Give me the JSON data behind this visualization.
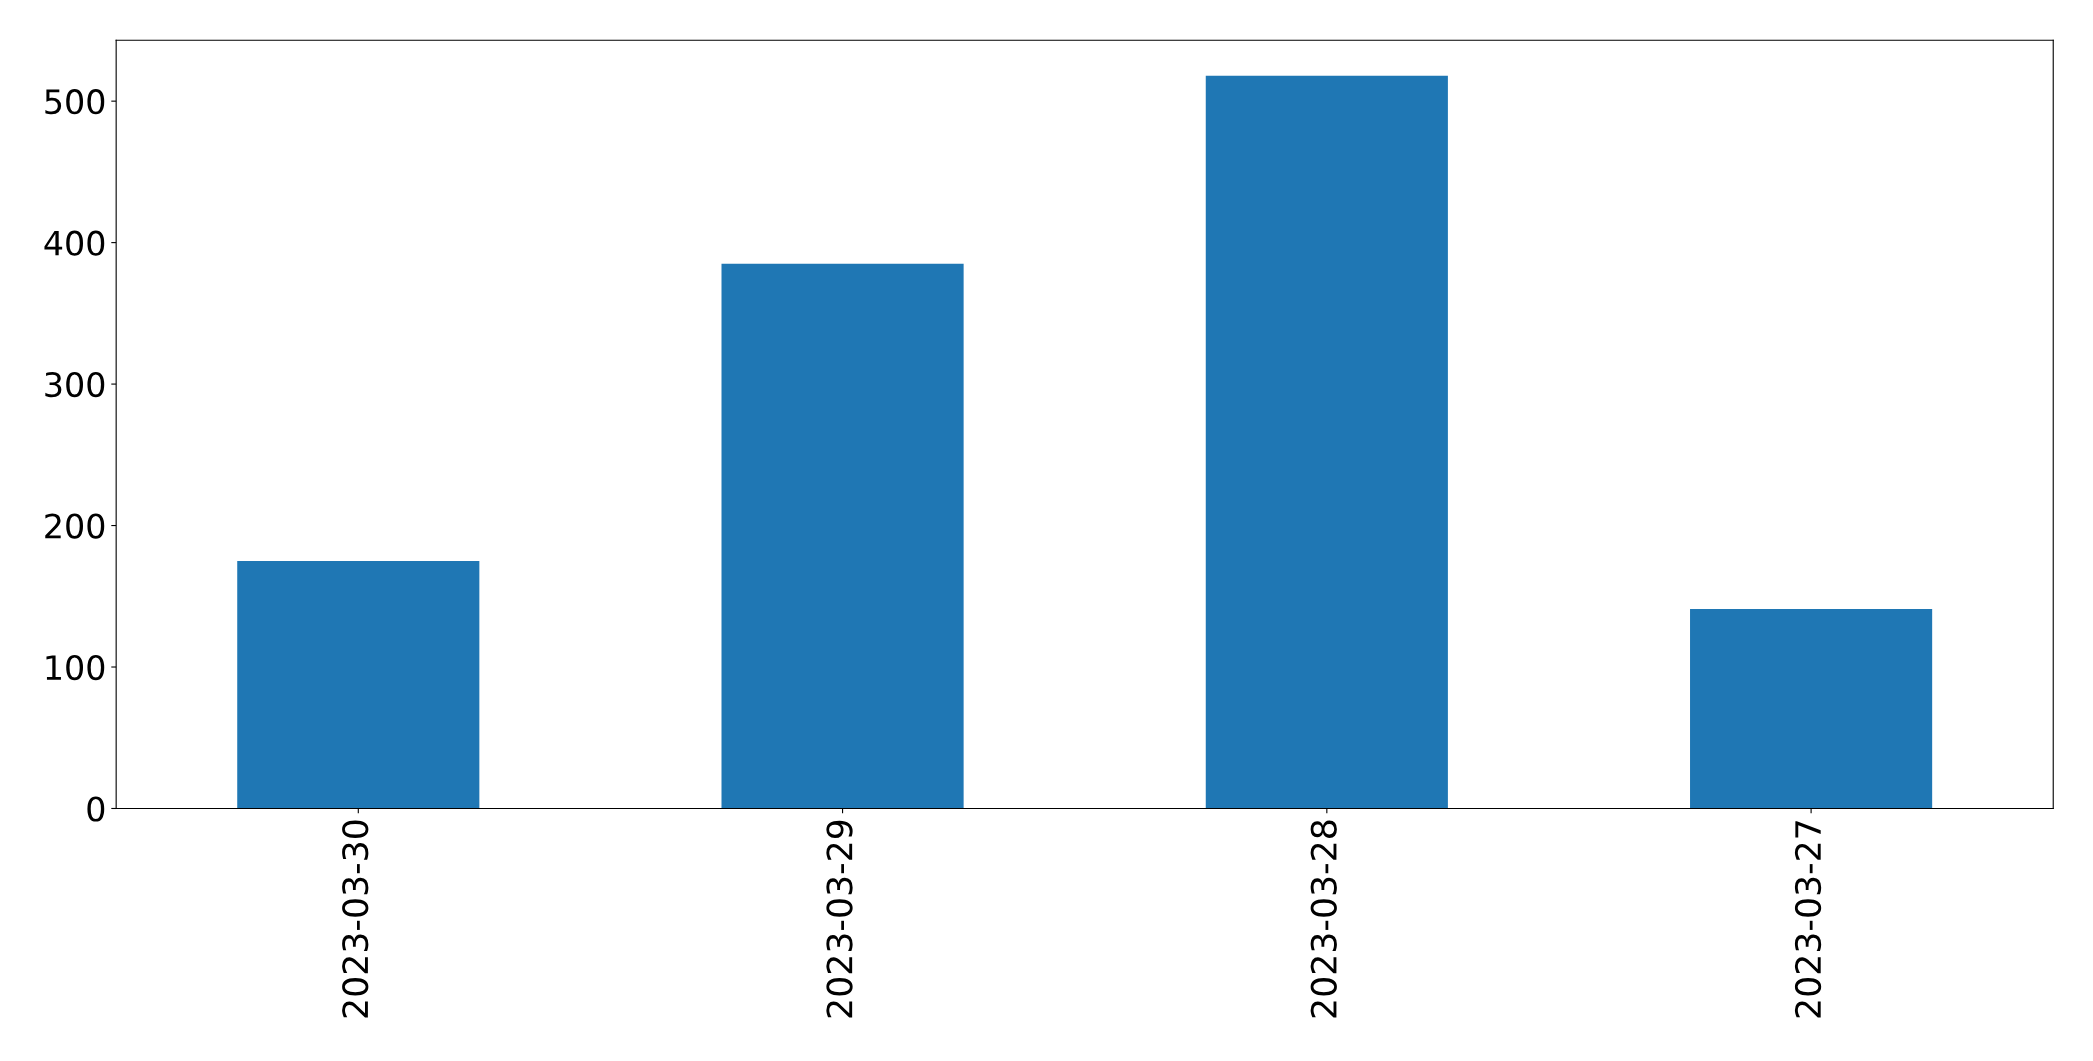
{
  "chart_data": {
    "type": "bar",
    "categories": [
      "2023-03-30",
      "2023-03-29",
      "2023-03-28",
      "2023-03-27"
    ],
    "values": [
      175,
      385,
      518,
      141
    ],
    "color": "#1f77b4",
    "ylim": [
      0,
      543
    ],
    "yticks": [
      0,
      100,
      200,
      300,
      400,
      500
    ],
    "grid": false
  }
}
